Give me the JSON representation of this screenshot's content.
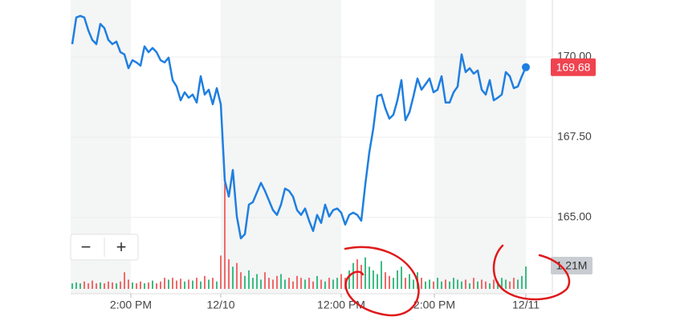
{
  "chart_data": {
    "type": "line",
    "x": [
      0,
      1,
      2,
      3,
      4,
      5,
      6,
      7,
      8,
      9,
      10,
      11,
      12,
      13,
      14,
      15,
      16,
      17,
      18,
      19,
      20,
      21,
      22,
      23,
      24,
      25,
      26,
      27,
      28,
      29,
      30,
      31,
      32,
      33,
      34,
      35,
      36,
      37,
      38,
      39,
      40,
      41,
      42,
      43,
      44,
      45,
      46,
      47,
      48,
      49,
      50,
      51,
      52,
      53,
      54,
      55,
      56,
      57,
      58,
      59,
      60,
      61,
      62,
      63,
      64,
      65,
      66,
      67,
      68,
      69,
      70,
      71,
      72,
      73,
      74,
      75,
      76,
      77,
      78,
      79,
      80,
      81,
      82,
      83,
      84,
      85,
      86,
      87,
      88,
      89,
      90,
      91,
      92,
      93,
      94,
      95,
      96,
      97,
      98,
      99,
      100,
      101,
      102,
      103,
      104,
      105,
      106,
      107,
      108,
      109,
      110,
      111,
      112,
      113
    ],
    "series": [
      {
        "color": "#1f7fe0",
        "values": [
          170.4,
          171.23,
          171.28,
          171.23,
          170.83,
          170.53,
          170.4,
          171.03,
          170.9,
          170.53,
          170.4,
          170.48,
          170.15,
          170.08,
          169.65,
          169.9,
          169.83,
          169.73,
          170.33,
          170.15,
          170.28,
          170.15,
          169.9,
          169.83,
          169.98,
          169.28,
          169.08,
          168.65,
          168.9,
          168.73,
          168.83,
          168.58,
          169.4,
          168.83,
          168.98,
          168.53,
          169.03,
          168.53,
          166.15,
          165.65,
          166.48,
          165.03,
          164.35,
          164.48,
          165.4,
          165.48,
          165.78,
          166.08,
          165.83,
          165.53,
          165.23,
          165.08,
          165.4,
          165.9,
          165.83,
          165.65,
          165.23,
          165.08,
          165.28,
          164.9,
          164.58,
          165.08,
          164.83,
          165.4,
          165.03,
          165.23,
          165.28,
          165.15,
          164.78,
          165.08,
          165.15,
          165.08,
          164.9,
          166.03,
          167.03,
          167.78,
          168.78,
          168.83,
          168.4,
          168.08,
          168.2,
          168.65,
          169.28,
          168.03,
          168.28,
          168.78,
          169.33,
          168.98,
          169.15,
          169.33,
          168.9,
          168.98,
          169.4,
          168.58,
          168.58,
          168.9,
          169.08,
          170.08,
          169.53,
          169.65,
          169.48,
          169.58,
          168.98,
          168.83,
          169.28,
          168.65,
          168.73,
          168.83,
          169.53,
          169.4,
          169.03,
          169.08,
          169.4,
          169.68
        ]
      }
    ],
    "xlim": [
      -0.4,
      119.6
    ],
    "xticks": [
      {
        "value": 14.6,
        "label": "2:00 PM"
      },
      {
        "value": 37,
        "label": "12/10"
      },
      {
        "value": 67,
        "label": "12:00 PM"
      },
      {
        "value": 90.2,
        "label": "2:00 PM"
      },
      {
        "value": 113,
        "label": "12/11"
      }
    ],
    "ylim": [
      162.775,
      171.775
    ],
    "yticks": [
      {
        "value": 165,
        "label": "165.00"
      },
      {
        "value": 167.5,
        "label": "167.50"
      },
      {
        "value": 170,
        "label": "170.00"
      }
    ],
    "grid": true,
    "last_price_color": "#f0434f",
    "volume": {
      "up_color": "#3dbb84",
      "down_color": "#f06a6a",
      "ylim": [
        0,
        15.6
      ],
      "last_label": "1.21M",
      "values": [
        0.3,
        0.35,
        0.3,
        0.4,
        0.3,
        0.45,
        0.3,
        0.35,
        0.3,
        0.4,
        0.35,
        0.3,
        0.4,
        0.9,
        0.5,
        0.35,
        0.3,
        0.4,
        0.3,
        0.35,
        0.45,
        0.3,
        0.4,
        0.6,
        0.5,
        0.6,
        0.45,
        0.55,
        0.4,
        0.5,
        0.45,
        0.6,
        0.4,
        0.7,
        0.5,
        0.6,
        0.4,
        1.8,
        5.7,
        1.6,
        1.2,
        1.4,
        0.9,
        0.7,
        1.0,
        0.6,
        0.8,
        0.5,
        0.9,
        0.6,
        0.5,
        0.7,
        0.8,
        0.5,
        0.6,
        0.4,
        0.7,
        0.6,
        0.5,
        0.6,
        0.4,
        0.7,
        0.5,
        0.4,
        0.6,
        0.5,
        0.6,
        0.8,
        0.6,
        1.0,
        1.4,
        1.6,
        1.3,
        1.7,
        1.2,
        1.0,
        0.8,
        1.5,
        0.9,
        0.7,
        0.6,
        1.0,
        1.2,
        0.6,
        0.8,
        0.5,
        0.9,
        0.6,
        0.4,
        0.5,
        0.4,
        0.6,
        0.4,
        0.5,
        0.4,
        0.6,
        0.5,
        0.4,
        0.5,
        0.3,
        0.6,
        0.4,
        0.5,
        0.4,
        0.3,
        0.5,
        0.4,
        0.6,
        0.5,
        0.4,
        0.6,
        0.5,
        0.7,
        1.21
      ]
    }
  },
  "controls": {
    "zoom_out": "−",
    "zoom_in": "+"
  }
}
